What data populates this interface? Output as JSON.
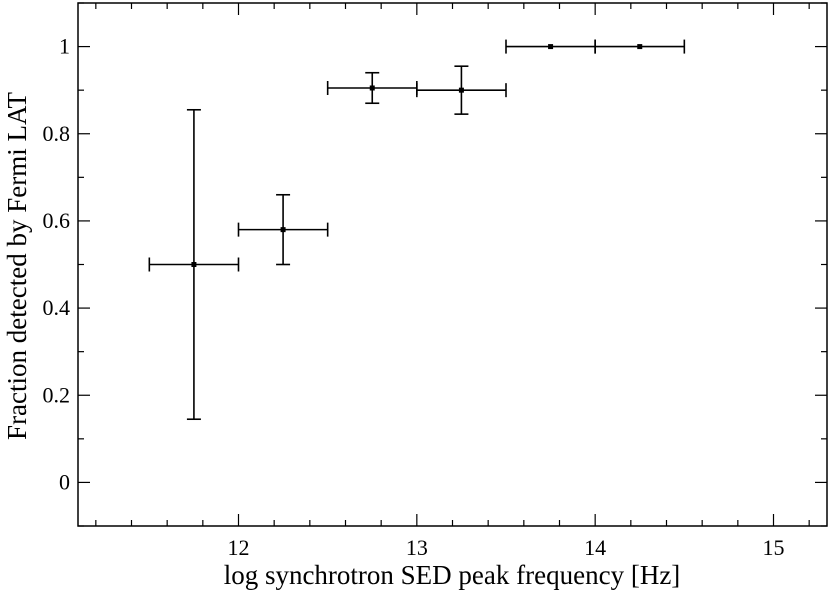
{
  "chart_data": {
    "type": "scatter",
    "title": "",
    "xlabel": "log synchrotron SED peak frequency [Hz]",
    "ylabel": "Fraction detected by Fermi LAT",
    "xlim": [
      11.1,
      15.3
    ],
    "ylim": [
      -0.1,
      1.1
    ],
    "x_major_ticks": [
      12,
      13,
      14,
      15
    ],
    "x_minor_step": 0.2,
    "y_major_ticks": [
      0,
      0.2,
      0.4,
      0.6,
      0.8,
      1
    ],
    "y_minor_step": 0.1,
    "grid": false,
    "series": [
      {
        "points": [
          {
            "x": 11.75,
            "y": 0.5,
            "xerr": [
              11.5,
              12.0
            ],
            "yerr": [
              0.145,
              0.855
            ]
          },
          {
            "x": 12.25,
            "y": 0.58,
            "xerr": [
              12.0,
              12.5
            ],
            "yerr": [
              0.5,
              0.66
            ]
          },
          {
            "x": 12.75,
            "y": 0.905,
            "xerr": [
              12.5,
              13.0
            ],
            "yerr": [
              0.87,
              0.94
            ]
          },
          {
            "x": 13.25,
            "y": 0.9,
            "xerr": [
              13.0,
              13.5
            ],
            "yerr": [
              0.845,
              0.955
            ]
          },
          {
            "x": 13.75,
            "y": 1.0,
            "xerr": [
              13.5,
              14.0
            ],
            "yerr": [
              1.0,
              1.0
            ]
          },
          {
            "x": 14.25,
            "y": 1.0,
            "xerr": [
              14.0,
              14.5
            ],
            "yerr": [
              1.0,
              1.0
            ]
          }
        ]
      }
    ]
  }
}
